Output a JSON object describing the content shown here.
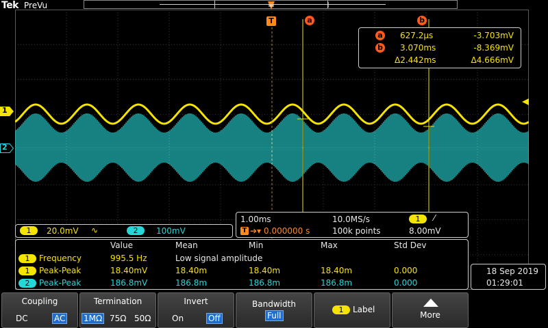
{
  "header": {
    "brand": "Tek",
    "mode": "PreVu"
  },
  "markers": {
    "trigger": "T",
    "cursor_a": "a",
    "cursor_b": "b",
    "ch1": "1",
    "ch2": "2"
  },
  "cursor_readout": {
    "a_time": "627.2µs",
    "a_value": "-3.703mV",
    "b_time": "3.070ms",
    "b_value": "-8.369mV",
    "delta_time": "Δ2.442ms",
    "delta_value": "Δ4.666mV"
  },
  "channel_scales": {
    "ch1_scale": "20.0mV",
    "ch1_coupling_symbol": "∿",
    "ch2_scale": "100mV"
  },
  "horizontal": {
    "time_div": "1.00ms",
    "sample_rate": "10.0MS/s",
    "trigger_delay": "0.000000 s",
    "record_length": "100k points",
    "trigger_channel": "1",
    "trigger_slope": "⁄",
    "trigger_level": "8.00mV"
  },
  "measurements": {
    "headers": {
      "value": "Value",
      "mean": "Mean",
      "min": "Min",
      "max": "Max",
      "std": "Std Dev"
    },
    "rows": [
      {
        "ch": "1",
        "name": "Frequency",
        "value": "995.5 Hz",
        "note": "Low signal amplitude"
      },
      {
        "ch": "1",
        "name": "Peak-Peak",
        "value": "18.40mV",
        "mean": "18.40m",
        "min": "18.40m",
        "max": "18.40m",
        "std": "0.000"
      },
      {
        "ch": "2",
        "name": "Peak-Peak",
        "value": "186.8mV",
        "mean": "186.8m",
        "min": "186.8m",
        "max": "186.8m",
        "std": "0.000"
      }
    ]
  },
  "datetime": {
    "date": "18 Sep 2019",
    "time": "01:29:01"
  },
  "buttons": {
    "coupling": {
      "title": "Coupling",
      "opt1": "DC",
      "opt2": "AC"
    },
    "termination": {
      "title": "Termination",
      "opt1": "1MΩ",
      "opt2": "75Ω",
      "opt3": "50Ω"
    },
    "invert": {
      "title": "Invert",
      "opt1": "On",
      "opt2": "Off"
    },
    "bandwidth": {
      "title": "Bandwidth",
      "opt1": "Full"
    },
    "label": {
      "ch": "1",
      "title": "Label"
    },
    "more": {
      "title": "More"
    }
  },
  "colors": {
    "ch1": "#f5e400",
    "ch2": "#27d6d6",
    "cursor": "#ff5a1e",
    "selected": "#1f6ecc"
  }
}
